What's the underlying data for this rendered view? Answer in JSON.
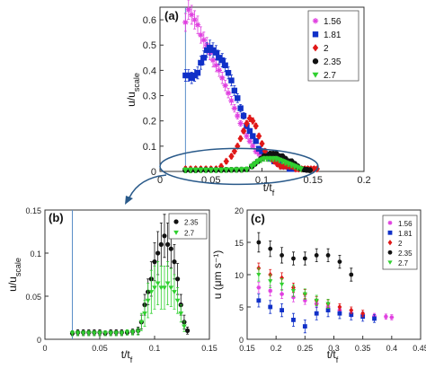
{
  "chart_data": [
    {
      "type": "scatter",
      "panel_label": "(a)",
      "xlabel": "t/t_f",
      "ylabel": "u/u_scale",
      "xlim": [
        0,
        0.2
      ],
      "ylim": [
        0,
        0.65
      ],
      "xticks": [
        "0",
        "0.05",
        "0.1",
        "0.15",
        "0.2"
      ],
      "yticks": [
        "0",
        "0.1",
        "0.2",
        "0.3",
        "0.4",
        "0.5",
        "0.6"
      ],
      "xtick_values": [
        0,
        0.05,
        0.1,
        0.15,
        0.2
      ],
      "ytick_values": [
        0,
        0.1,
        0.2,
        0.3,
        0.4,
        0.5,
        0.6
      ],
      "vline_x": 0.025,
      "legend_position": "top-right",
      "series": [
        {
          "name": "1.56",
          "color": "#e040e0",
          "marker": "star",
          "x": [
            0.025,
            0.028,
            0.031,
            0.034,
            0.037,
            0.04,
            0.043,
            0.046,
            0.049,
            0.052,
            0.055,
            0.058,
            0.061,
            0.064,
            0.067,
            0.07,
            0.073,
            0.076,
            0.079,
            0.082,
            0.085,
            0.088,
            0.091,
            0.094,
            0.097,
            0.1,
            0.103,
            0.106,
            0.109,
            0.112,
            0.115,
            0.118,
            0.121,
            0.124,
            0.127,
            0.13,
            0.133,
            0.136
          ],
          "y": [
            0.59,
            0.64,
            0.62,
            0.6,
            0.58,
            0.54,
            0.52,
            0.5,
            0.47,
            0.44,
            0.42,
            0.4,
            0.37,
            0.34,
            0.31,
            0.28,
            0.25,
            0.22,
            0.19,
            0.16,
            0.14,
            0.12,
            0.1,
            0.08,
            0.07,
            0.07,
            0.06,
            0.05,
            0.05,
            0.04,
            0.03,
            0.03,
            0.02,
            0.02,
            0.02,
            0.01,
            0.01,
            0.01
          ]
        },
        {
          "name": "1.81",
          "color": "#1030c8",
          "marker": "square",
          "x": [
            0.025,
            0.028,
            0.031,
            0.034,
            0.037,
            0.04,
            0.043,
            0.046,
            0.049,
            0.052,
            0.055,
            0.058,
            0.061,
            0.064,
            0.067,
            0.07,
            0.073,
            0.076,
            0.079,
            0.082,
            0.085,
            0.088,
            0.091,
            0.094,
            0.097,
            0.1,
            0.103,
            0.106,
            0.109,
            0.112,
            0.115,
            0.118,
            0.121,
            0.124,
            0.127,
            0.13
          ],
          "y": [
            0.38,
            0.38,
            0.37,
            0.38,
            0.39,
            0.43,
            0.45,
            0.48,
            0.49,
            0.48,
            0.47,
            0.45,
            0.44,
            0.42,
            0.39,
            0.36,
            0.32,
            0.29,
            0.25,
            0.22,
            0.18,
            0.16,
            0.14,
            0.12,
            0.09,
            0.08,
            0.07,
            0.06,
            0.05,
            0.04,
            0.04,
            0.03,
            0.02,
            0.02,
            0.01,
            0.01
          ]
        },
        {
          "name": "2",
          "color": "#e01818",
          "marker": "diamond",
          "x": [
            0.025,
            0.03,
            0.035,
            0.04,
            0.045,
            0.05,
            0.055,
            0.06,
            0.065,
            0.07,
            0.073,
            0.076,
            0.079,
            0.082,
            0.085,
            0.088,
            0.091,
            0.094,
            0.097,
            0.1,
            0.103,
            0.106,
            0.109,
            0.112,
            0.115,
            0.118,
            0.121,
            0.124,
            0.127,
            0.13,
            0.133,
            0.136,
            0.139,
            0.142,
            0.145,
            0.148,
            0.151,
            0.154
          ],
          "y": [
            0.01,
            0.01,
            0.01,
            0.01,
            0.01,
            0.01,
            0.01,
            0.02,
            0.04,
            0.06,
            0.08,
            0.1,
            0.13,
            0.16,
            0.19,
            0.21,
            0.2,
            0.18,
            0.14,
            0.11,
            0.08,
            0.06,
            0.05,
            0.04,
            0.03,
            0.02,
            0.02,
            0.02,
            0.02,
            0.02,
            0.01,
            0.01,
            0.01,
            0.01,
            0.01,
            0.01,
            0.01,
            0.01
          ]
        },
        {
          "name": "2.35",
          "color": "#111111",
          "marker": "circle",
          "x": [
            0.025,
            0.03,
            0.035,
            0.04,
            0.045,
            0.05,
            0.055,
            0.06,
            0.065,
            0.07,
            0.075,
            0.08,
            0.085,
            0.09,
            0.093,
            0.096,
            0.099,
            0.102,
            0.105,
            0.108,
            0.111,
            0.114,
            0.117,
            0.12,
            0.123,
            0.126,
            0.129,
            0.132,
            0.135,
            0.138,
            0.141,
            0.144,
            0.147
          ],
          "y": [
            0.005,
            0.005,
            0.005,
            0.006,
            0.006,
            0.006,
            0.006,
            0.006,
            0.006,
            0.006,
            0.007,
            0.007,
            0.008,
            0.02,
            0.03,
            0.04,
            0.05,
            0.06,
            0.06,
            0.07,
            0.07,
            0.07,
            0.06,
            0.06,
            0.05,
            0.04,
            0.04,
            0.03,
            0.02,
            0.01,
            0.008,
            0.006,
            0.005
          ]
        },
        {
          "name": "2.7",
          "color": "#30d030",
          "marker": "triangle",
          "x": [
            0.025,
            0.03,
            0.035,
            0.04,
            0.045,
            0.05,
            0.055,
            0.06,
            0.065,
            0.07,
            0.075,
            0.08,
            0.085,
            0.09,
            0.093,
            0.096,
            0.099,
            0.102,
            0.105,
            0.108,
            0.111,
            0.114,
            0.117,
            0.12,
            0.123,
            0.126,
            0.129,
            0.132,
            0.135,
            0.138
          ],
          "y": [
            0.005,
            0.005,
            0.005,
            0.005,
            0.005,
            0.005,
            0.005,
            0.005,
            0.006,
            0.006,
            0.006,
            0.007,
            0.008,
            0.02,
            0.03,
            0.04,
            0.045,
            0.05,
            0.05,
            0.05,
            0.05,
            0.05,
            0.045,
            0.04,
            0.035,
            0.03,
            0.025,
            0.02,
            0.015,
            0.01
          ]
        }
      ]
    },
    {
      "type": "scatter",
      "panel_label": "(b)",
      "xlabel": "t/t_f",
      "ylabel": "u/u_scale",
      "xlim": [
        0,
        0.15
      ],
      "ylim": [
        0,
        0.15
      ],
      "xticks": [
        "0",
        "0.05",
        "0.1",
        "0.15"
      ],
      "yticks": [
        "0",
        "0.05",
        "0.1",
        "0.15"
      ],
      "xtick_values": [
        0,
        0.05,
        0.1,
        0.15
      ],
      "ytick_values": [
        0,
        0.05,
        0.1,
        0.15
      ],
      "vline_x": 0.025,
      "legend_position": "top-right",
      "series": [
        {
          "name": "2.35",
          "color": "#111111",
          "marker": "circle",
          "x": [
            0.025,
            0.03,
            0.035,
            0.04,
            0.045,
            0.05,
            0.055,
            0.06,
            0.065,
            0.07,
            0.075,
            0.08,
            0.085,
            0.088,
            0.091,
            0.094,
            0.097,
            0.1,
            0.103,
            0.106,
            0.109,
            0.112,
            0.115,
            0.118,
            0.121,
            0.124,
            0.127,
            0.13
          ],
          "y": [
            0.007,
            0.008,
            0.008,
            0.008,
            0.008,
            0.008,
            0.007,
            0.008,
            0.008,
            0.008,
            0.008,
            0.009,
            0.01,
            0.02,
            0.04,
            0.055,
            0.07,
            0.09,
            0.1,
            0.11,
            0.12,
            0.11,
            0.105,
            0.09,
            0.07,
            0.04,
            0.02,
            0.01
          ],
          "err": [
            0.003,
            0.003,
            0.003,
            0.003,
            0.003,
            0.003,
            0.003,
            0.003,
            0.003,
            0.003,
            0.003,
            0.003,
            0.004,
            0.008,
            0.012,
            0.015,
            0.02,
            0.022,
            0.025,
            0.025,
            0.025,
            0.025,
            0.022,
            0.02,
            0.018,
            0.012,
            0.008,
            0.004
          ]
        },
        {
          "name": "2.7",
          "color": "#30d030",
          "marker": "triangle",
          "x": [
            0.025,
            0.03,
            0.035,
            0.04,
            0.045,
            0.05,
            0.055,
            0.06,
            0.065,
            0.07,
            0.075,
            0.08,
            0.085,
            0.088,
            0.091,
            0.094,
            0.097,
            0.1,
            0.103,
            0.106,
            0.109,
            0.112,
            0.115,
            0.118,
            0.121,
            0.124,
            0.127
          ],
          "y": [
            0.007,
            0.007,
            0.007,
            0.007,
            0.007,
            0.007,
            0.007,
            0.007,
            0.007,
            0.007,
            0.008,
            0.008,
            0.009,
            0.02,
            0.03,
            0.045,
            0.055,
            0.06,
            0.065,
            0.06,
            0.06,
            0.065,
            0.06,
            0.055,
            0.045,
            0.03,
            0.015
          ],
          "err": [
            0.003,
            0.003,
            0.003,
            0.003,
            0.003,
            0.003,
            0.003,
            0.003,
            0.003,
            0.003,
            0.003,
            0.003,
            0.004,
            0.01,
            0.015,
            0.02,
            0.025,
            0.025,
            0.025,
            0.025,
            0.025,
            0.025,
            0.022,
            0.02,
            0.015,
            0.01,
            0.006
          ]
        }
      ]
    },
    {
      "type": "scatter",
      "panel_label": "(c)",
      "xlabel": "t/t_f",
      "ylabel": "u (μm s⁻¹)",
      "xlim": [
        0.15,
        0.45
      ],
      "ylim": [
        0,
        20
      ],
      "xticks": [
        "0.15",
        "0.2",
        "0.25",
        "0.3",
        "0.35",
        "0.4",
        "0.45"
      ],
      "yticks": [
        "0",
        "5",
        "10",
        "15",
        "20"
      ],
      "xtick_values": [
        0.15,
        0.2,
        0.25,
        0.3,
        0.35,
        0.4,
        0.45
      ],
      "ytick_values": [
        0,
        5,
        10,
        15,
        20
      ],
      "legend_position": "top-right",
      "series": [
        {
          "name": "1.56",
          "color": "#e040e0",
          "marker": "star",
          "x": [
            0.17,
            0.19,
            0.21,
            0.23,
            0.25,
            0.27,
            0.29,
            0.31,
            0.33,
            0.35,
            0.37,
            0.39,
            0.4
          ],
          "y": [
            8,
            7.5,
            7,
            6.5,
            6,
            5.5,
            5,
            4.5,
            4,
            3.8,
            3.6,
            3.5,
            3.4
          ],
          "err": [
            0.8,
            0.8,
            0.7,
            0.7,
            0.6,
            0.6,
            0.5,
            0.5,
            0.5,
            0.4,
            0.4,
            0.4,
            0.4
          ]
        },
        {
          "name": "1.81",
          "color": "#1030c8",
          "marker": "square",
          "x": [
            0.17,
            0.19,
            0.21,
            0.23,
            0.25,
            0.27,
            0.29,
            0.31,
            0.33,
            0.35,
            0.37
          ],
          "y": [
            6,
            5,
            4.5,
            3,
            2,
            4,
            4.5,
            4,
            3.8,
            3.5,
            3.2
          ],
          "err": [
            1,
            1,
            1,
            1,
            1,
            1,
            1,
            0.8,
            0.8,
            0.7,
            0.6
          ]
        },
        {
          "name": "2",
          "color": "#e01818",
          "marker": "diamond",
          "x": [
            0.17,
            0.19,
            0.21,
            0.23,
            0.25,
            0.27,
            0.29,
            0.31,
            0.33,
            0.35
          ],
          "y": [
            11,
            10,
            9.5,
            8,
            7,
            6,
            5.5,
            5,
            4.5,
            4
          ],
          "err": [
            0.8,
            0.8,
            0.8,
            0.7,
            0.7,
            0.6,
            0.6,
            0.5,
            0.5,
            0.5
          ]
        },
        {
          "name": "2.35",
          "color": "#111111",
          "marker": "circle",
          "x": [
            0.17,
            0.19,
            0.21,
            0.23,
            0.25,
            0.27,
            0.29,
            0.31,
            0.33
          ],
          "y": [
            15,
            14,
            13,
            12.5,
            12.5,
            13,
            13,
            12,
            10
          ],
          "err": [
            1.5,
            1.2,
            1.2,
            1,
            1,
            1,
            1,
            1,
            1
          ]
        },
        {
          "name": "2.7",
          "color": "#30d030",
          "marker": "triangle",
          "x": [
            0.17,
            0.19,
            0.21,
            0.23,
            0.25,
            0.27,
            0.29
          ],
          "y": [
            10,
            9,
            8.5,
            7.5,
            7,
            6,
            5.5
          ],
          "err": [
            1,
            1,
            0.9,
            0.9,
            0.8,
            0.8,
            0.7
          ]
        }
      ]
    }
  ],
  "zoom_ellipse": {
    "x_from": 0.0,
    "x_to": 0.155,
    "y_center": 0.02
  }
}
